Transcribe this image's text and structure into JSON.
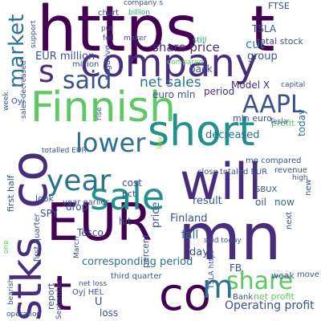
{
  "wordcloud": {
    "colors": {
      "background": "#ffffff",
      "dark_purple": "#440154",
      "purple": "#472d7b",
      "blue": "#3b528b",
      "steel_blue": "#2c728e",
      "teal": "#21918c",
      "green_teal": "#28ae80",
      "green": "#5ec962",
      "yellow_green": "#addc30",
      "yellow": "#fde725"
    },
    "words": [
      "https",
      "t",
      "company",
      "Finnish",
      "short",
      "EUR",
      "mn",
      "co",
      "sale",
      "will",
      "stks",
      "market",
      "said",
      "s",
      "year",
      "lower",
      "AAPL",
      "share",
      "m",
      "t co",
      "EUR million",
      "net sales",
      "euro mln",
      "period",
      "Model X",
      "share price",
      "cut",
      "FTSE",
      "TSLA",
      "group",
      "back",
      "total stock",
      "still",
      "capital",
      "company s",
      "chart",
      "billion",
      "put",
      "fell",
      "million",
      "negative",
      "compared",
      "Finland",
      "pct",
      "price",
      "result",
      "decreased",
      "profit",
      "mln euro",
      "first half",
      "SPY",
      "cost",
      "drop",
      "hit",
      "fall",
      "day",
      "Operating profit",
      "corresponding period",
      "FB",
      "Bank",
      "net profit",
      "third quarter",
      "net loss",
      "Oyj HEL",
      "loss",
      "U",
      "report",
      "percent",
      "Tesco",
      "March",
      "first quarter",
      "look",
      "weak",
      "move",
      "close",
      "totaled EUR",
      "revenue",
      "year earlier",
      "oil",
      "SBUX",
      "now",
      "next",
      "today",
      "new",
      "high",
      "low",
      "said today",
      "totalled EUR",
      "maker",
      "Oyj",
      "operation",
      "bearish",
      "September",
      "week",
      "one",
      "sales decreased",
      "support",
      "mn compared",
      "TSLA https",
      "Tesla",
      "rise",
      "co"
    ]
  }
}
